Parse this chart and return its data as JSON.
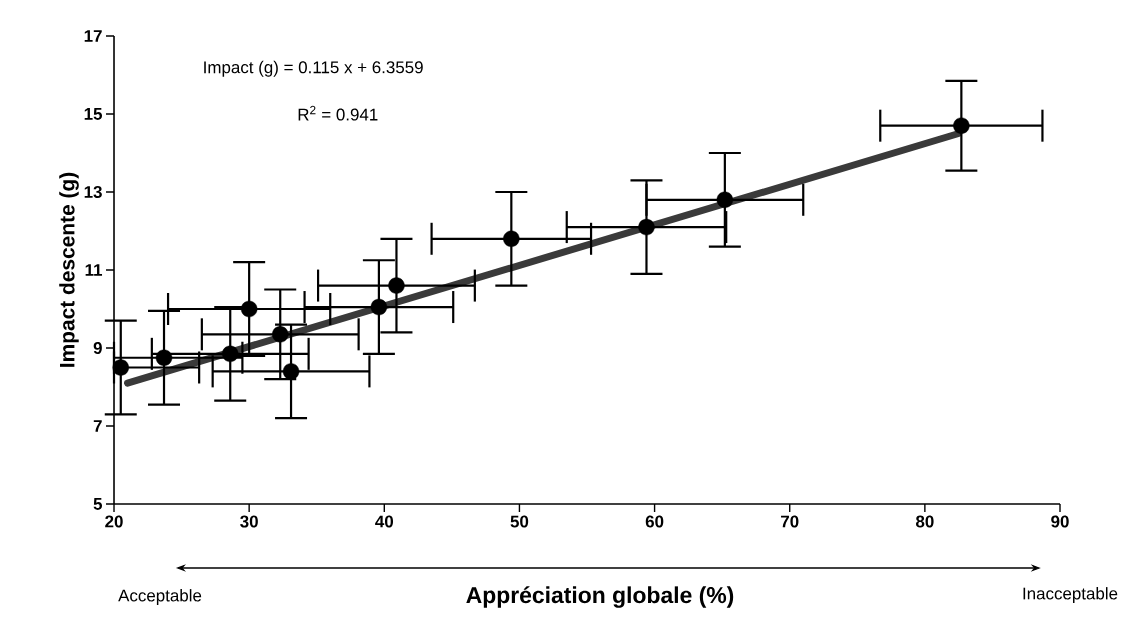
{
  "chart_data": {
    "type": "scatter",
    "xlabel": "Appréciation globale (%)",
    "ylabel": "Impact descente (g)",
    "annotations": [
      "Impact (g) = 0.115 x + 6.3559",
      "R$^{2}$ = 0.941",
      "Acceptable",
      "Inacceptable"
    ],
    "series": [
      {
        "type": "line",
        "marker": "none",
        "color": "#3a3a3a",
        "x": [
          21,
          82.5
        ],
        "values": [
          8.1,
          14.5
        ]
      },
      {
        "color": "#000000",
        "marker": "circle",
        "x": [
          20.5,
          23.7,
          30,
          28.6,
          32.3,
          33.1,
          39.6,
          40.9,
          49.4,
          59.4,
          65.2,
          82.7
        ],
        "values": [
          8.5,
          8.75,
          10.0,
          8.85,
          9.35,
          8.4,
          10.05,
          10.6,
          11.8,
          12.1,
          12.8,
          14.7
        ],
        "errors": [
          1.2,
          1.2,
          1.2,
          1.2,
          1.15,
          1.2,
          1.2,
          1.2,
          1.2,
          1.2,
          1.2,
          1.15
        ],
        "xerrors": [
          [
            20,
            26.3
          ],
          [
            20,
            29.5
          ],
          6,
          5.8,
          5.8,
          5.8,
          5.5,
          5.8,
          5.9,
          5.9,
          5.8,
          6
        ]
      }
    ],
    "xlim": [
      20,
      90
    ],
    "ylim": [
      5,
      17
    ],
    "xticks": [
      20,
      30,
      40,
      50,
      60,
      70,
      80,
      90
    ],
    "yticks": [
      5,
      7,
      9,
      11,
      13,
      15,
      17
    ],
    "grid": false
  }
}
